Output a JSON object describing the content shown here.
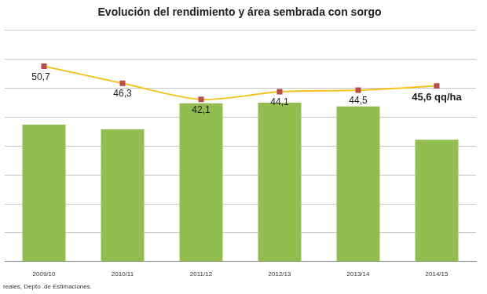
{
  "chart_data": {
    "type": "bar",
    "title": "Evolución del rendimiento y área sembrada con sorgo",
    "source": "reales, Depto .de Estimaciones.",
    "categories": [
      "2009/10",
      "2010/11",
      "2011/12",
      "2012/13",
      "2013/14",
      "2014/15"
    ],
    "series": [
      {
        "type": "bar",
        "color": "#92bd4f",
        "values": [
          4.74,
          4.58,
          5.48,
          5.5,
          5.37,
          4.22
        ]
      },
      {
        "type": "line",
        "color": "#f3c21b",
        "marker": "square",
        "axis": "y2",
        "data_labels": true,
        "values": [
          50.7,
          46.3,
          42.1,
          44.1,
          44.5,
          45.6
        ],
        "value_labels": [
          "50,7",
          "46,3",
          "42,1",
          "44,1",
          "44,5",
          "45,6 qq/ha"
        ]
      }
    ],
    "ylim": [
      0,
      8
    ],
    "yticks": [
      0,
      1,
      2,
      3,
      4,
      5,
      6,
      7,
      8
    ],
    "y2lim": [
      0,
      60
    ],
    "y2ticks": [
      0,
      7.5,
      15,
      22.5,
      30,
      37.5,
      45,
      52.5,
      60
    ],
    "grid": true,
    "tick_labels": "x"
  }
}
